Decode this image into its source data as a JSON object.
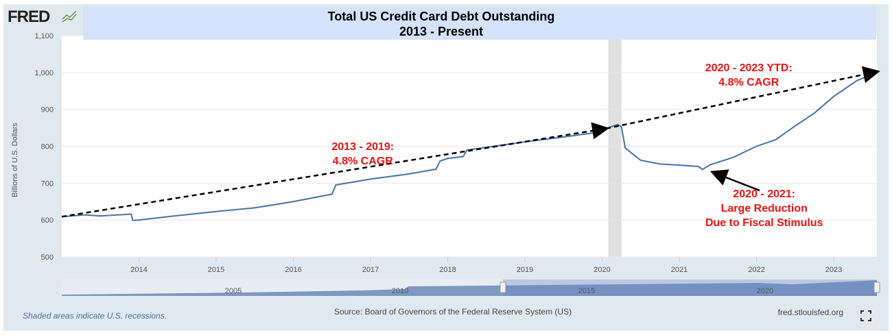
{
  "logo": "FRED",
  "footer": {
    "note": "Shaded areas indicate U.S. recessions.",
    "source": "Source: Board of Governors of the Federal Reserve System (US)",
    "site": "fred.stlouisfed.org",
    "fullscreen_icon": "expand-icon"
  },
  "colors": {
    "line": "#4572a7",
    "annotation": "#ee1111",
    "title_band": "#d4e3fa",
    "recession": "#e1e1e1"
  },
  "chart_data": {
    "type": "line",
    "title": "Total US Credit Card Debt Outstanding",
    "subtitle": "2013 - Present",
    "ylabel": "Billions of U.S. Dollars",
    "xlabel": "",
    "xlim": [
      2013.0,
      2023.56
    ],
    "ylim": [
      500,
      1100
    ],
    "yticks": [
      500,
      600,
      700,
      800,
      900,
      "1,000",
      "1,100"
    ],
    "ytick_values": [
      500,
      600,
      700,
      800,
      900,
      1000,
      1100
    ],
    "xticks": [
      "2014",
      "2015",
      "2016",
      "2017",
      "2018",
      "2019",
      "2020",
      "2021",
      "2022",
      "2023"
    ],
    "grid": true,
    "recessions": [
      [
        2020.08,
        2020.25
      ]
    ],
    "series": [
      {
        "x": [
          2013.0,
          2013.3,
          2013.5,
          2013.9,
          2013.92,
          2014.0,
          2014.5,
          2015.0,
          2015.5,
          2016.0,
          2016.5,
          2016.55,
          2017.0,
          2017.5,
          2017.85,
          2017.9,
          2018.0,
          2018.2,
          2018.25,
          2018.5,
          2019.0,
          2019.5,
          2019.95,
          2020.05,
          2020.2,
          2020.25,
          2020.3,
          2020.5,
          2020.75,
          2021.0,
          2021.25,
          2021.3,
          2021.4,
          2021.7,
          2022.0,
          2022.25,
          2022.5,
          2022.75,
          2023.0,
          2023.3,
          2023.56
        ],
        "y": [
          609,
          614,
          611,
          616,
          599,
          600,
          612,
          623,
          633,
          650,
          670,
          695,
          711,
          725,
          738,
          760,
          767,
          772,
          790,
          797,
          812,
          825,
          838,
          848,
          859,
          853,
          795,
          762,
          752,
          749,
          745,
          737,
          750,
          770,
          800,
          818,
          855,
          890,
          935,
          978,
          1000
        ]
      }
    ],
    "trendlines": [
      {
        "from": [
          2013.0,
          609
        ],
        "to": [
          2020.05,
          848
        ]
      },
      {
        "from": [
          2020.05,
          848
        ],
        "to": [
          2023.56,
          1002
        ]
      }
    ],
    "arrow": {
      "from": [
        2022.04,
        680
      ],
      "to": [
        2021.44,
        729
      ]
    },
    "annotations": [
      {
        "lines": [
          "2013 - 2019:",
          "4.8% CAGR"
        ],
        "at": [
          2016.9,
          790
        ]
      },
      {
        "lines": [
          "2020 - 2023 YTD:",
          "4.8% CAGR"
        ],
        "at": [
          2021.9,
          1003
        ]
      },
      {
        "lines": [
          "2020 - 2021:",
          "Large Reduction",
          "Due to Fiscal Stimulus"
        ],
        "at": [
          2022.1,
          662
        ]
      }
    ],
    "navigator_ticks": [
      "2005",
      "2010",
      "2015",
      "2020"
    ]
  }
}
